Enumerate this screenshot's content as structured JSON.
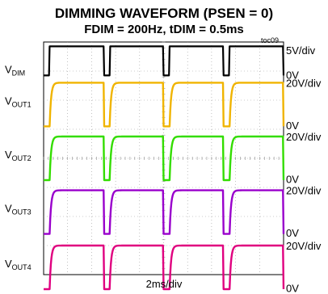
{
  "header": {
    "title": "DIMMING WAVEFORM (PSEN = 0)",
    "subtitle": "FDIM = 200Hz, tDIM = 0.5ms",
    "tag": "toc09"
  },
  "chart_data": {
    "type": "line",
    "title": "DIMMING WAVEFORM (PSEN = 0)",
    "subtitle": "FDIM = 200Hz, tDIM = 0.5ms",
    "xlabel": "2ms/div",
    "x_divisions": 10,
    "y_divisions": 8,
    "grid": true,
    "period_ms": 5,
    "on_time_ms": 0.5,
    "series": [
      {
        "label_main": "V",
        "label_sub": "DIM",
        "scale": "5V/div",
        "zero_label": "0V",
        "color": "#000000",
        "high_div": 1,
        "low_div": 0,
        "zero_div_from_top": 1.15
      },
      {
        "label_main": "V",
        "label_sub": "OUT1",
        "scale": "20V/div",
        "zero_label": "0V",
        "color": "#f0b400",
        "high_div": 1.6,
        "low_div": 0.1,
        "zero_div_from_top": 3.0
      },
      {
        "label_main": "V",
        "label_sub": "OUT2",
        "scale": "20V/div",
        "zero_label": "0V",
        "color": "#33dd00",
        "high_div": 1.6,
        "low_div": 0.1,
        "zero_div_from_top": 4.85
      },
      {
        "label_main": "V",
        "label_sub": "OUT3",
        "scale": "20V/div",
        "zero_label": "0V",
        "color": "#9900cc",
        "high_div": 1.6,
        "low_div": 0.1,
        "zero_div_from_top": 6.7
      },
      {
        "label_main": "V",
        "label_sub": "OUT4",
        "scale": "20V/div",
        "zero_label": "0V",
        "color": "#e0007f",
        "high_div": 1.6,
        "low_div": 0.1,
        "zero_div_from_top": 8.6
      }
    ]
  }
}
